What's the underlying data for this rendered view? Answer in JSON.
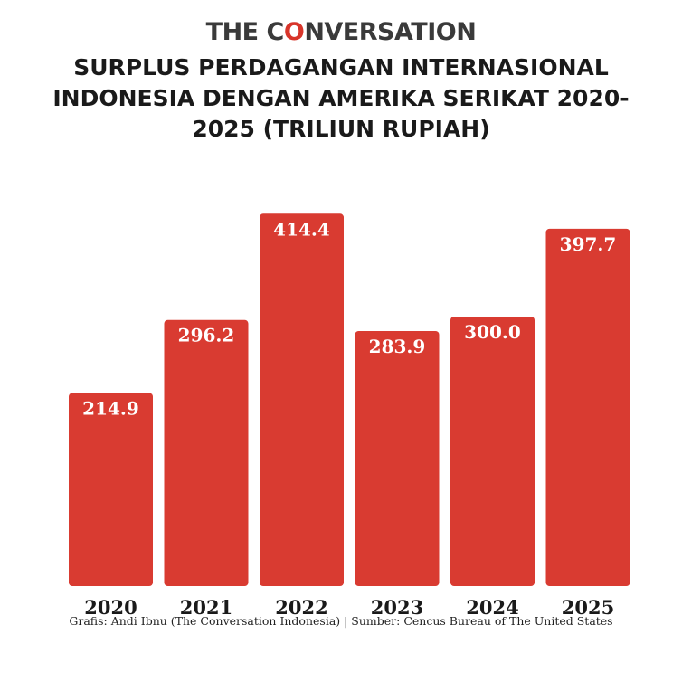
{
  "brand": {
    "logo_part1": "THE C",
    "logo_o": "O",
    "logo_part2": "NVERSATION"
  },
  "footer": {
    "credit": "Grafis: Andi Ibnu (The Conversation Indonesia) | Sumber: Cencus Bureau of The United States"
  },
  "colors": {
    "bar": "#d93b31",
    "accent": "#d8352a"
  },
  "chart_data": {
    "type": "bar",
    "title": "SURPLUS PERDAGANGAN INTERNASIONAL INDONESIA DENGAN AMERIKA SERIKAT 2020-2025 (TRILIUN RUPIAH)",
    "categories": [
      "2020",
      "2021",
      "2022",
      "2023",
      "2024",
      "2025"
    ],
    "values": [
      214.9,
      296.2,
      414.4,
      283.9,
      300.0,
      397.7
    ],
    "value_labels": [
      "214.9",
      "296.2",
      "414.4",
      "283.9",
      "300.0",
      "397.7"
    ],
    "xlabel": "",
    "ylabel": "",
    "grid": false,
    "legend": "none"
  }
}
